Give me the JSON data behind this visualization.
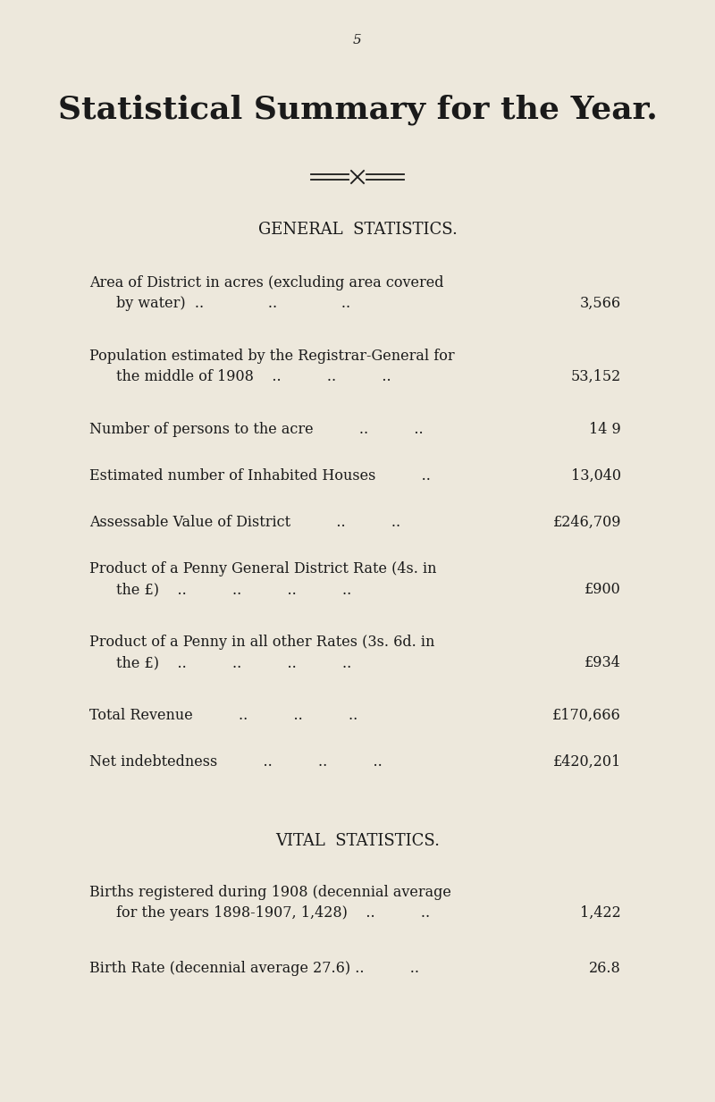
{
  "page_number": "5",
  "main_title": "Statistical Summary for the Year.",
  "section1_title": "GENERAL  STATISTICS.",
  "section2_title": "VITAL  STATISTICS.",
  "background_color": "#EDE8DC",
  "text_color": "#1a1a1a",
  "rows": [
    {
      "label_lines": [
        "Area of District in acres (excluding area covered",
        "by water)  ..              ..              .."
      ],
      "value": "3,566"
    },
    {
      "label_lines": [
        "Population estimated by the Registrar-General for",
        "the middle of 1908    ..          ..          .."
      ],
      "value": "53,152"
    },
    {
      "label_lines": [
        "Number of persons to the acre          ..          .."
      ],
      "value": "14 9"
    },
    {
      "label_lines": [
        "Estimated number of Inhabited Houses          .."
      ],
      "value": "13,040"
    },
    {
      "label_lines": [
        "Assessable Value of District          ..          .."
      ],
      "value": "£246,709"
    },
    {
      "label_lines": [
        "Product of a Penny General District Rate (4s. in",
        "the £)    ..          ..          ..          .."
      ],
      "value": "£900"
    },
    {
      "label_lines": [
        "Product of a Penny in all other Rates (3s. 6d. in",
        "the £)    ..          ..          ..          .."
      ],
      "value": "£934"
    },
    {
      "label_lines": [
        "Total Revenue          ..          ..          .."
      ],
      "value": "£170,666"
    },
    {
      "label_lines": [
        "Net indebtedness          ..          ..          .."
      ],
      "value": "£420,201"
    }
  ],
  "vital_rows": [
    {
      "label_lines": [
        "Births registered during 1908 (decennial average",
        "for the years 1898-1907, 1,428)    ..          .."
      ],
      "value": "1,422"
    },
    {
      "label_lines": [
        "Birth Rate (decennial average 27.6) ..          .."
      ],
      "value": "26.8"
    }
  ]
}
